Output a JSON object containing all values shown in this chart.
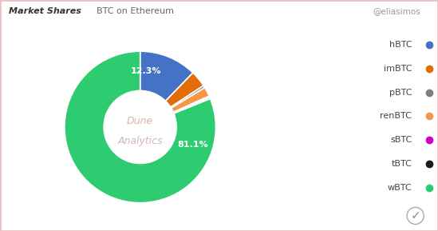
{
  "header_left": "Market Shares",
  "header_right": "@eliasimos",
  "subtitle": "BTC on Ethereum",
  "labels": [
    "hBTC",
    "imBTC",
    "pBTC",
    "renBTC",
    "sBTC",
    "tBTC",
    "wBTC"
  ],
  "values": [
    12.3,
    3.5,
    0.5,
    2.0,
    0.3,
    0.3,
    81.1
  ],
  "colors": [
    "#4472C4",
    "#E36C09",
    "#808080",
    "#F79646",
    "#CC00CC",
    "#1A1A1A",
    "#2ECC71"
  ],
  "pct_labels": [
    "12.3%",
    "",
    "",
    "",
    "",
    "",
    "81.1%"
  ],
  "background_color": "#FFFFFF",
  "border_color": "#F0C8C8",
  "watermark_line1": "Dune",
  "watermark_line2": "Analytics",
  "legend_labels": [
    "hBTC",
    "imBTC",
    "pBTC",
    "renBTC",
    "sBTC",
    "tBTC",
    "wBTC"
  ],
  "legend_colors": [
    "#4472C4",
    "#E36C09",
    "#808080",
    "#F79646",
    "#CC00CC",
    "#1A1A1A",
    "#2ECC71"
  ]
}
